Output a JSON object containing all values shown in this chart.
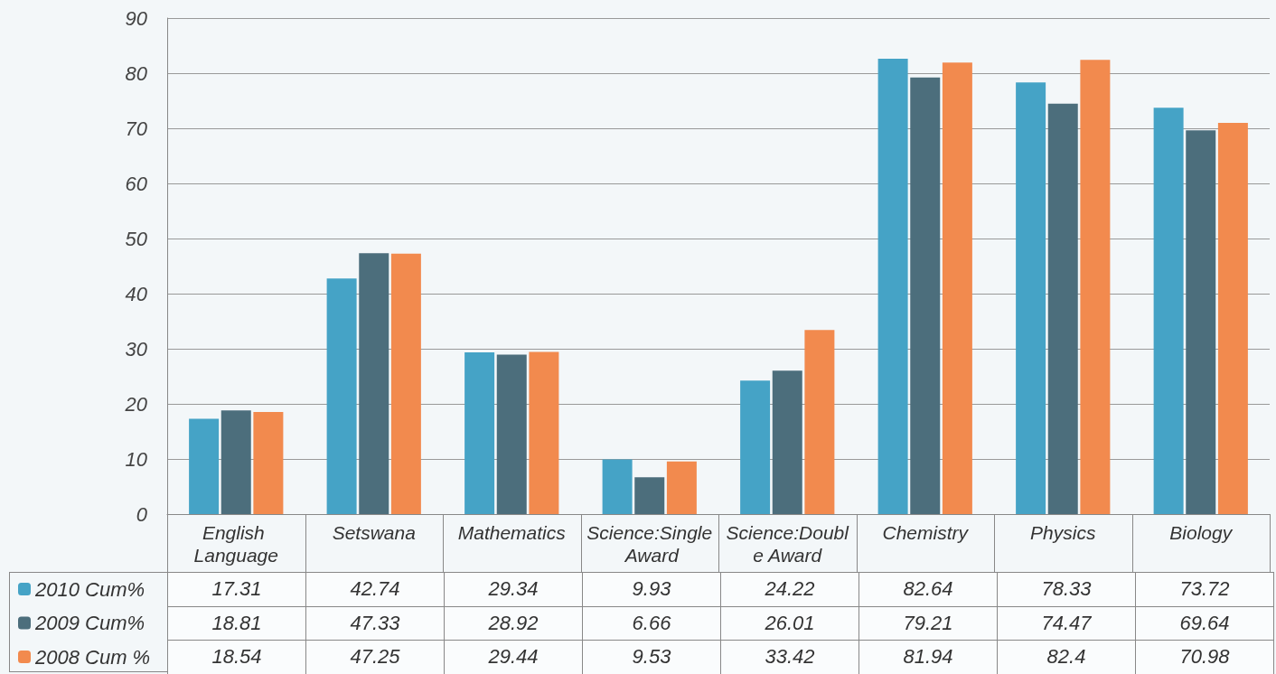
{
  "chart_data": {
    "type": "bar",
    "categories": [
      "English Language",
      "Setswana",
      "Mathematics",
      "Science:Single Award",
      "Science:Double Award",
      "Chemistry",
      "Physics",
      "Biology"
    ],
    "series": [
      {
        "name": "2010 Cum%",
        "color": "#45a3c6",
        "values": [
          17.31,
          42.74,
          29.34,
          9.93,
          24.22,
          82.64,
          78.33,
          73.72
        ]
      },
      {
        "name": "2009 Cum%",
        "color": "#4c6e7c",
        "values": [
          18.81,
          47.33,
          28.92,
          6.66,
          26.01,
          79.21,
          74.47,
          69.64
        ]
      },
      {
        "name": "2008 Cum %",
        "color": "#f28a4e",
        "values": [
          18.54,
          47.25,
          29.44,
          9.53,
          33.42,
          81.94,
          82.4,
          70.98
        ]
      }
    ],
    "ylim": [
      0,
      90
    ],
    "yticks": [
      0,
      10,
      20,
      30,
      40,
      50,
      60,
      70,
      80,
      90
    ],
    "grid": "y",
    "legend": "bottom left",
    "data_labels": true
  }
}
